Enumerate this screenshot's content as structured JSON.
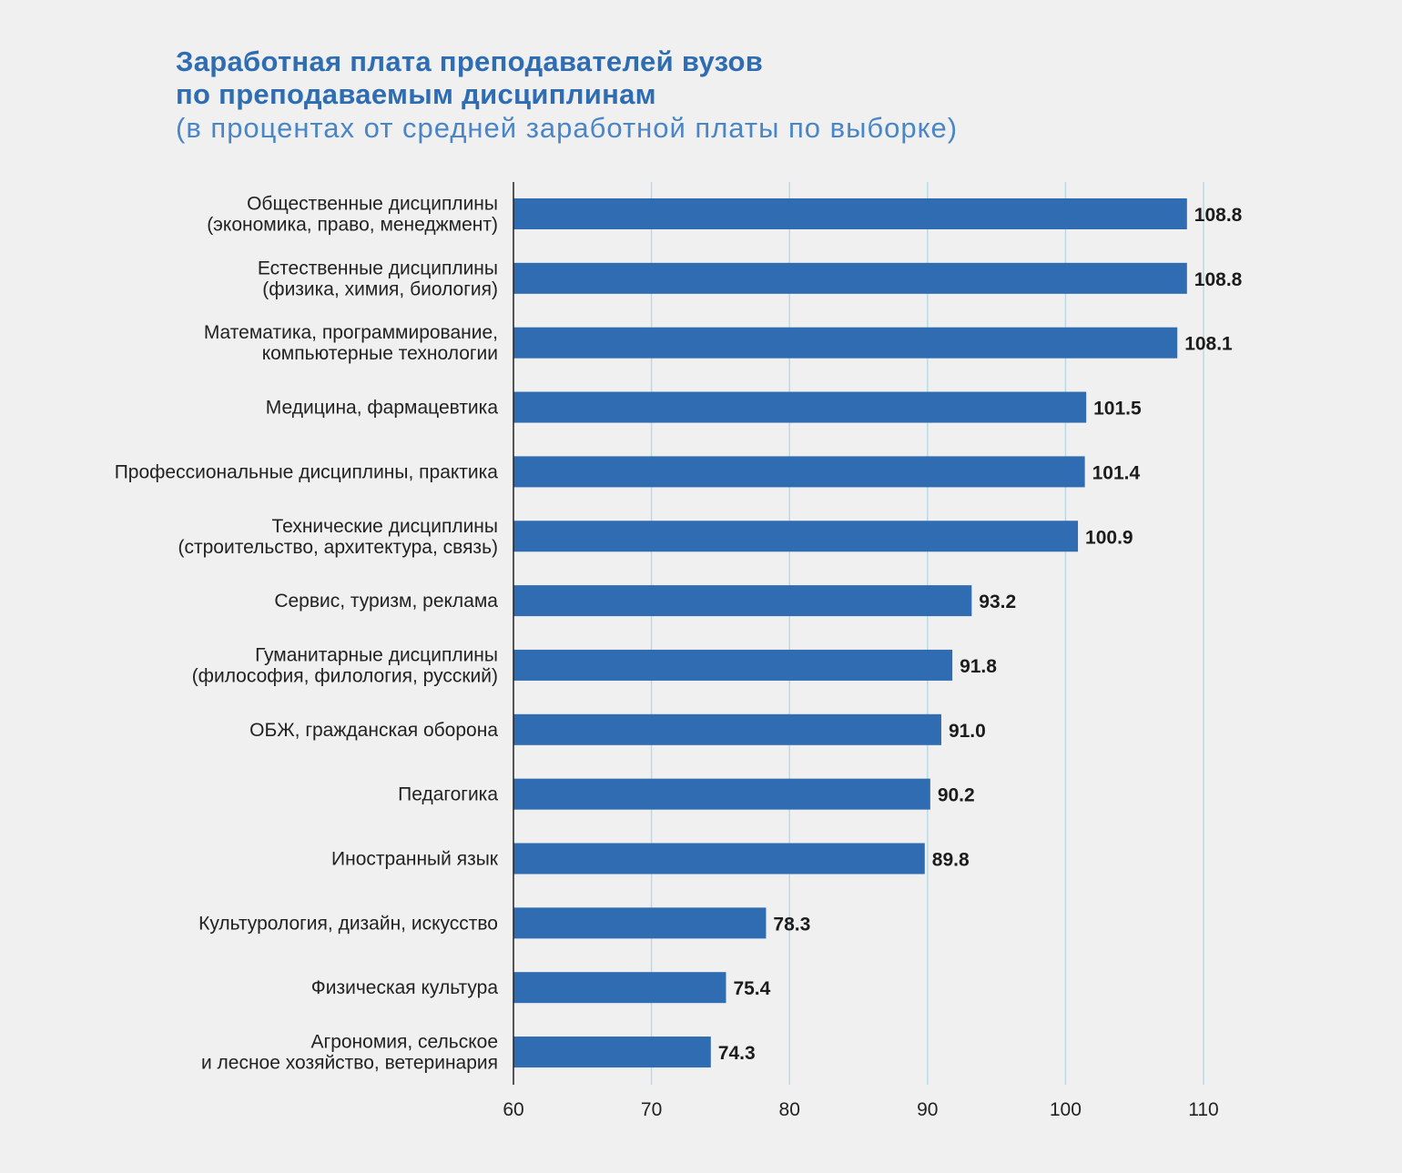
{
  "chart_data": {
    "type": "bar",
    "orientation": "horizontal",
    "title": "Заработная плата преподавателей вузов\nпо преподаваемым дисциплинам",
    "title_lines": [
      "Заработная плата преподавателей вузов",
      "по преподаваемым дисциплинам"
    ],
    "subtitle": "(в процентах от средней заработной платы по выборке)",
    "categories": [
      "Общественные дисциплины\n(экономика, право, менеджмент)",
      "Естественные дисциплины\n(физика, химия, биология)",
      "Математика, программирование,\nкомпьютерные технологии",
      "Медицина, фармацевтика",
      "Профессиональные дисциплины, практика",
      "Технические дисциплины\n(строительство, архитектура, связь)",
      "Сервис, туризм, реклама",
      "Гуманитарные дисциплины\n(философия, филология, русский)",
      "ОБЖ, гражданская оборона",
      "Педагогика",
      "Иностранный язык",
      "Культурология, дизайн, искусство",
      "Физическая культура",
      "Агрономия, сельское\nи лесное хозяйство, ветеринария"
    ],
    "values": [
      108.8,
      108.8,
      108.1,
      101.5,
      101.4,
      100.9,
      93.2,
      91.8,
      91.0,
      90.2,
      89.8,
      78.3,
      75.4,
      74.3
    ],
    "value_labels": [
      "108.8",
      "108.8",
      "108.1",
      "101.5",
      "101.4",
      "100.9",
      "93.2",
      "91.8",
      "91.0",
      "90.2",
      "89.8",
      "78.3",
      "75.4",
      "74.3"
    ],
    "xlim": [
      60,
      110
    ],
    "xticks": [
      60,
      70,
      80,
      90,
      100,
      110
    ],
    "xlabel": "",
    "ylabel": "",
    "grid": true,
    "legend": "none",
    "colors": {
      "bar": "#306cb2",
      "grid": "#b9dbe6",
      "axis": "#222222",
      "title": "#2f6db3",
      "subtitle": "#4a86c7",
      "label": "#222222",
      "value": "#1c1c1c"
    }
  }
}
